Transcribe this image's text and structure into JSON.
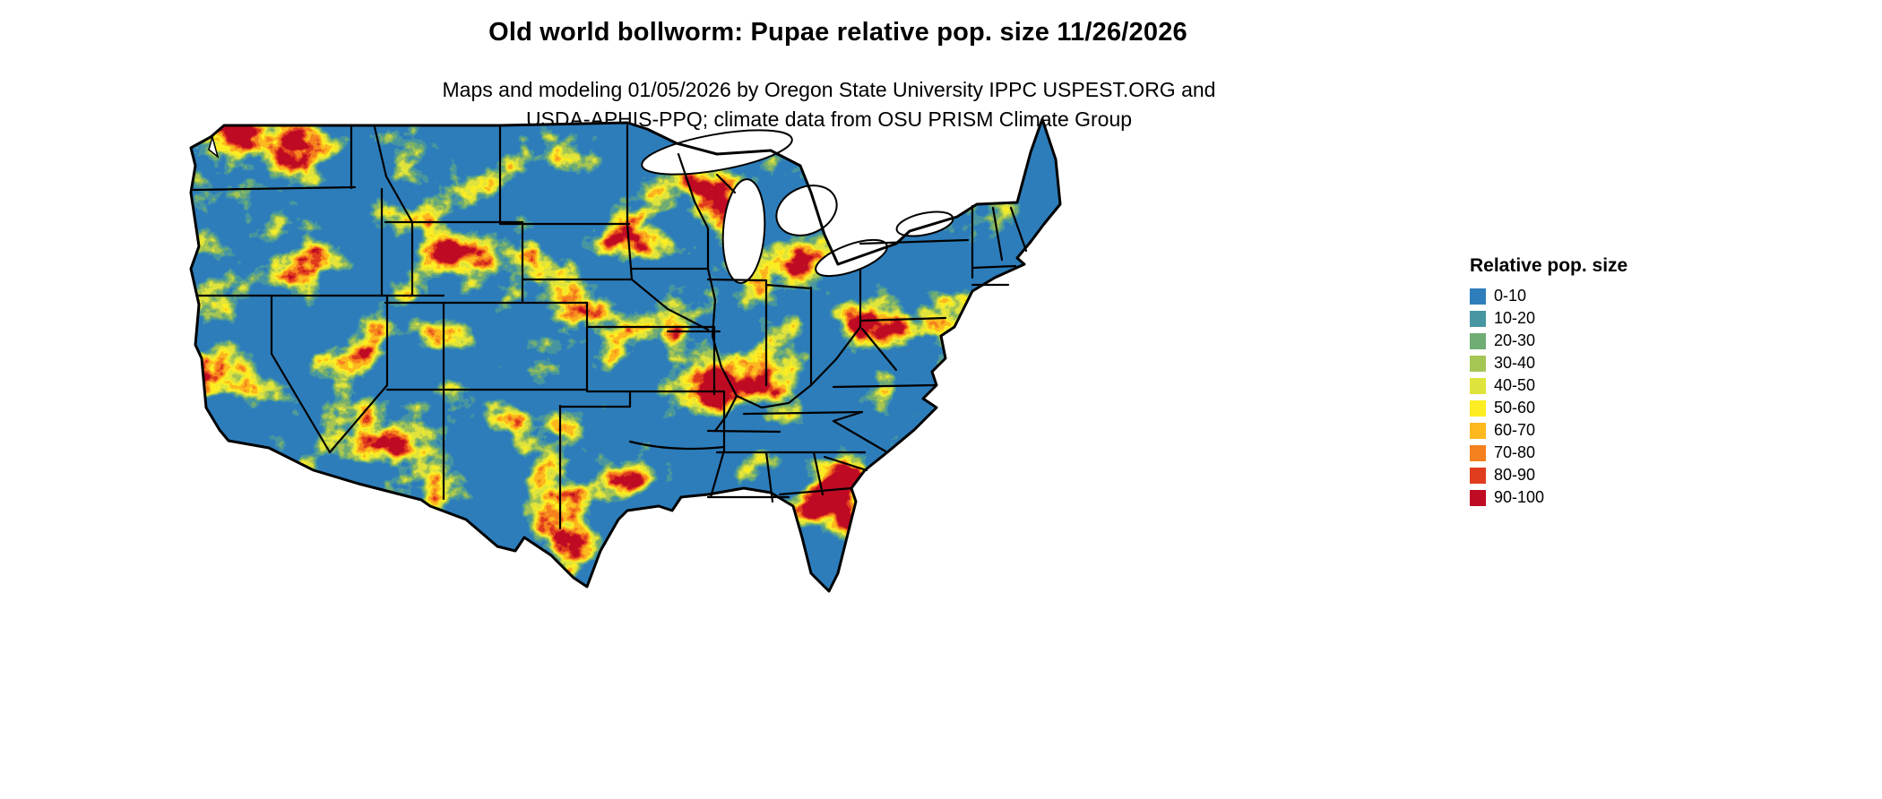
{
  "title": "Old world bollworm: Pupae relative pop. size 11/26/2026",
  "subtitle_line1": "Maps and modeling 01/05/2026 by Oregon State University IPPC USPEST.ORG and",
  "subtitle_line2": "USDA-APHIS-PPQ; climate data from OSU PRISM Climate Group",
  "map": {
    "region": "Continental United States",
    "layer": "Relative population size raster with state boundaries",
    "base_color": "#2e7ebc",
    "boundary_color": "#000000",
    "water_color": "#ffffff"
  },
  "legend": {
    "title": "Relative pop. size",
    "items": [
      {
        "label": "0-10",
        "color": "#2e7ebc"
      },
      {
        "label": "10-20",
        "color": "#4796a2"
      },
      {
        "label": "20-30",
        "color": "#70ad74"
      },
      {
        "label": "30-40",
        "color": "#a6c653"
      },
      {
        "label": "40-50",
        "color": "#dfe43c"
      },
      {
        "label": "50-60",
        "color": "#fcee23"
      },
      {
        "label": "60-70",
        "color": "#fdb91e"
      },
      {
        "label": "70-80",
        "color": "#f5811e"
      },
      {
        "label": "80-90",
        "color": "#e03d1e"
      },
      {
        "label": "90-100",
        "color": "#bf0c24"
      }
    ]
  }
}
